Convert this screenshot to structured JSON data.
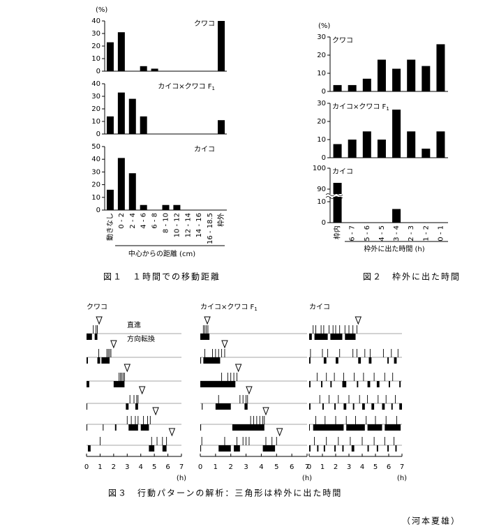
{
  "chart_data": [
    {
      "type": "bar",
      "ylabel": "(%)",
      "xlabel": "中心からの距離 (cm)",
      "caption": "図１　１時間での移動距離",
      "color": "#000000",
      "categories": [
        "動きなし",
        "0 - 2",
        "2 - 4",
        "4 - 6",
        "6 - 8",
        "8 - 10",
        "10 - 12",
        "12 - 14",
        "14 - 16",
        "16 - 18.5",
        "枠外"
      ],
      "panels": [
        {
          "title": "クワコ",
          "values": [
            23,
            31,
            0,
            4,
            2,
            0,
            0,
            0,
            0,
            0,
            40
          ],
          "ylim": [
            0,
            40
          ],
          "yticks": [
            0,
            10,
            20,
            30,
            40
          ]
        },
        {
          "title": "カイコ×クワコ F",
          "title_subscript": "1",
          "values": [
            14,
            33,
            28,
            14,
            0,
            0,
            0,
            0,
            0,
            0,
            11
          ],
          "ylim": [
            0,
            40
          ],
          "yticks": [
            0,
            10,
            20,
            30,
            40
          ]
        },
        {
          "title": "カイコ",
          "values": [
            16,
            41,
            29,
            4,
            0,
            4,
            4,
            0,
            0,
            0,
            0
          ],
          "ylim": [
            0,
            50
          ],
          "yticks": [
            0,
            10,
            20,
            30,
            40,
            50
          ]
        }
      ]
    },
    {
      "type": "bar",
      "ylabel": "(%)",
      "xlabel": "枠外に出た時間 (h)",
      "caption": "図２　枠外に出た時間",
      "color": "#000000",
      "categories": [
        "枠内",
        "6 - 7",
        "5 - 6",
        "4 - 5",
        "3 - 4",
        "2 - 3",
        "1 - 2",
        "0 - 1"
      ],
      "panels": [
        {
          "title": "クワコ",
          "values": [
            3.5,
            3.5,
            7,
            17.5,
            12.5,
            17.5,
            14,
            26
          ],
          "ylim": [
            0,
            30
          ],
          "yticks": [
            0,
            10,
            20,
            30
          ]
        },
        {
          "title": "カイコ×クワコ F",
          "title_subscript": "1",
          "values": [
            7.5,
            10,
            14.5,
            10,
            26.5,
            14.5,
            5,
            14.5
          ],
          "ylim": [
            0,
            30
          ],
          "yticks": [
            0,
            10,
            20,
            30
          ]
        },
        {
          "title": "カイコ",
          "values": [
            93,
            0,
            0,
            0,
            6.5,
            0,
            0,
            0
          ],
          "ylim": [
            0,
            100
          ],
          "yticks": [
            0,
            10,
            90,
            100
          ],
          "axis_break": [
            12,
            88
          ]
        }
      ]
    },
    {
      "type": "ethogram",
      "caption": "図３　行動パターンの解析：三角形は枠外に出た時間",
      "xlabel": "(h)",
      "xlim": [
        0,
        7
      ],
      "xticks": [
        0,
        1,
        2,
        3,
        4,
        5,
        6,
        7
      ],
      "legend": [
        "直進",
        "方向転換"
      ],
      "panels": [
        {
          "title": "クワコ",
          "rows": [
            {
              "exit": 0.93,
              "straight": [
                0.5,
                0.7,
                0.8
              ],
              "turn": [
                [
                  0,
                  0.4
                ],
                [
                  0.6,
                  0.8
                ]
              ]
            },
            {
              "exit": 2.0,
              "straight": [
                0.9,
                1.5,
                1.6,
                1.7,
                1.8
              ],
              "turn": [
                [
                  0,
                  0.1
                ],
                [
                  0.8,
                  1.0
                ],
                [
                  1.1,
                  1.7
                ]
              ]
            },
            {
              "exit": 3.0,
              "straight": [
                2.4,
                2.5,
                2.6,
                2.7,
                2.8
              ],
              "turn": [
                [
                  0,
                  0.2
                ],
                [
                  2.0,
                  2.8
                ]
              ]
            },
            {
              "exit": 4.1,
              "straight": [
                3.2,
                3.5,
                3.7,
                3.8
              ],
              "turn": [
                [
                  0,
                  0.05
                ],
                [
                  2.9,
                  3.1
                ],
                [
                  3.6,
                  3.8
                ]
              ]
            },
            {
              "exit": 5.1,
              "straight": [
                3.0,
                3.3,
                3.6,
                3.8,
                4.2,
                4.5,
                4.7
              ],
              "turn": [
                [
                  0,
                  0.05
                ],
                [
                  1.2,
                  1.25
                ],
                [
                  2.1,
                  2.2
                ],
                [
                  3.1,
                  3.8
                ],
                [
                  4.0,
                  4.6
                ]
              ]
            },
            {
              "exit": 6.3,
              "straight": [
                1.0,
                4.8,
                5.2,
                5.6,
                5.9
              ],
              "turn": [
                [
                  0.1,
                  0.3
                ],
                [
                  4.6,
                  5.0
                ],
                [
                  5.6,
                  5.9
                ]
              ]
            }
          ]
        },
        {
          "title": "カイコ×クワコ F",
          "title_subscript": "1",
          "rows": [
            {
              "exit": 0.46,
              "straight": [
                0.2,
                0.3,
                0.4,
                0.5
              ],
              "turn": [
                [
                  0,
                  0.6
                ]
              ]
            },
            {
              "exit": 1.6,
              "straight": [
                0.3,
                0.8,
                1.0,
                1.2,
                1.4,
                1.6
              ],
              "turn": [
                [
                  0,
                  0.05
                ],
                [
                  0.2,
                  1.3
                ]
              ]
            },
            {
              "exit": 2.5,
              "straight": [
                1.4,
                1.8,
                2.0,
                2.2,
                2.4
              ],
              "turn": [
                [
                  0,
                  2.3
                ]
              ]
            },
            {
              "exit": 3.2,
              "straight": [
                1.2,
                2.6,
                2.8,
                3.0,
                3.1
              ],
              "turn": [
                [
                  0.1,
                  0.15
                ],
                [
                  1.0,
                  2.0
                ],
                [
                  2.9,
                  3.1
                ]
              ]
            },
            {
              "exit": 4.3,
              "straight": [
                3.3,
                3.5,
                3.7,
                3.9,
                4.1,
                4.2
              ],
              "turn": [
                [
                  0,
                  0.05
                ],
                [
                  2.1,
                  4.2
                ]
              ]
            },
            {
              "exit": 5.2,
              "straight": [
                0.1,
                1.6,
                2.4,
                2.8,
                3.0,
                3.2,
                4.3,
                4.7,
                5.0
              ],
              "turn": [
                [
                  0,
                  0.05
                ],
                [
                  1.2,
                  2.0
                ],
                [
                  2.2,
                  2.6
                ],
                [
                  4.1,
                  4.9
                ]
              ]
            }
          ]
        },
        {
          "title": "カイコ",
          "rows": [
            {
              "exit": 3.7,
              "straight": [
                0.3,
                0.5,
                0.9,
                1.1,
                1.5,
                1.8,
                2.0,
                2.3,
                2.7,
                3.0,
                3.3,
                3.6
              ],
              "turn": [
                [
                  0,
                  0.2
                ],
                [
                  0.4,
                  1.4
                ],
                [
                  1.6,
                  2.5
                ],
                [
                  2.7,
                  3.5
                ]
              ]
            },
            {
              "exit": null,
              "straight": [
                0.1,
                1.0,
                1.4,
                2.3,
                3.3,
                3.6,
                4.2,
                4.6,
                5.6,
                6.2,
                6.7
              ],
              "turn": [
                [
                  0,
                  0.1
                ],
                [
                  1.1,
                  1.3
                ],
                [
                  2.0,
                  2.2
                ],
                [
                  3.7,
                  3.9
                ],
                [
                  4.5,
                  4.7
                ],
                [
                  5.9,
                  6.0
                ],
                [
                  6.4,
                  6.6
                ]
              ]
            },
            {
              "exit": null,
              "straight": [
                0.6,
                1.3,
                1.9,
                2.6,
                3.4,
                4.1,
                4.9,
                5.7,
                6.3
              ],
              "turn": [
                [
                  0,
                  0.1
                ],
                [
                  0.9,
                  1.0
                ],
                [
                  1.6,
                  1.7
                ],
                [
                  2.5,
                  2.8
                ],
                [
                  3.6,
                  3.7
                ],
                [
                  4.4,
                  4.6
                ],
                [
                  5.1,
                  5.3
                ],
                [
                  6.0,
                  6.1
                ],
                [
                  6.8,
                  6.9
                ]
              ]
            },
            {
              "exit": null,
              "straight": [
                0.8,
                1.5,
                2.2,
                3.0,
                3.8,
                4.4,
                5.2,
                5.8,
                6.5
              ],
              "turn": [
                [
                  0,
                  0.1
                ],
                [
                  1.0,
                  1.1
                ],
                [
                  1.9,
                  2.0
                ],
                [
                  2.6,
                  2.8
                ],
                [
                  3.3,
                  3.4
                ],
                [
                  4.0,
                  4.2
                ],
                [
                  4.7,
                  4.9
                ],
                [
                  5.5,
                  5.7
                ],
                [
                  6.2,
                  6.3
                ],
                [
                  6.8,
                  7.0
                ]
              ]
            },
            {
              "exit": null,
              "straight": [
                0.5,
                1.2,
                2.0,
                2.8,
                3.5,
                4.3,
                5.0,
                5.8,
                6.6
              ],
              "turn": [
                [
                  0,
                  0.05
                ],
                [
                  0.3,
                  2.6
                ],
                [
                  2.8,
                  4.2
                ],
                [
                  4.4,
                  5.5
                ],
                [
                  5.7,
                  6.9
                ]
              ]
            },
            {
              "exit": null,
              "straight": [
                0.4,
                1.3,
                2.2,
                3.1,
                4.0,
                4.9,
                5.7,
                6.4
              ],
              "turn": [
                [
                  0,
                  0.1
                ],
                [
                  0.6,
                  0.7
                ],
                [
                  1.1,
                  1.2
                ],
                [
                  1.9,
                  2.0
                ],
                [
                  2.5,
                  2.6
                ],
                [
                  3.2,
                  3.4
                ],
                [
                  4.4,
                  4.5
                ],
                [
                  5.1,
                  5.2
                ],
                [
                  5.9,
                  6.0
                ],
                [
                  6.5,
                  6.6
                ]
              ]
            }
          ]
        }
      ]
    }
  ],
  "author": "（河本夏雄）"
}
